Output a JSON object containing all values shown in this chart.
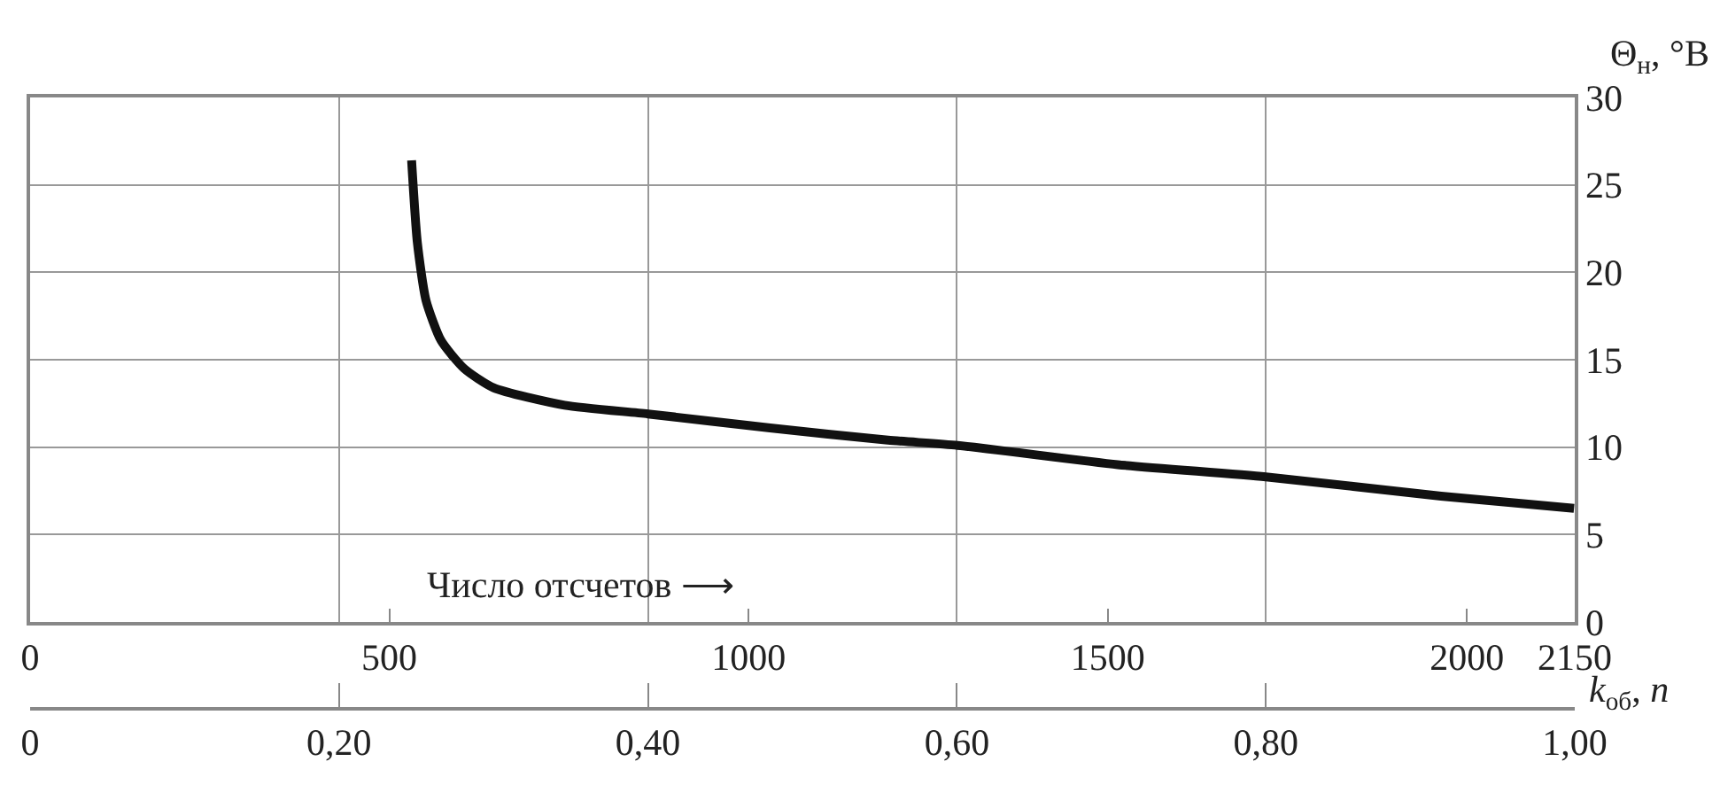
{
  "chart_data": {
    "type": "line",
    "ylabel": "Θ$_{н}$, °B",
    "x2label": "k$_{об}$, n",
    "x": [
      531,
      539,
      551,
      572,
      604,
      645,
      744,
      860,
      1030,
      1194,
      1291,
      1514,
      1720,
      1964,
      2149
    ],
    "series": [
      {
        "color": "#111111",
        "values": [
          26.4,
          21.7,
          18.4,
          16.1,
          14.5,
          13.4,
          12.4,
          11.9,
          11.1,
          10.4,
          10.1,
          9.0,
          8.3,
          7.2,
          6.5
        ]
      }
    ],
    "xlim": [
      0,
      2150
    ],
    "xticks": [
      0,
      500,
      1000,
      1500,
      2000,
      2150
    ],
    "x2lim": [
      0,
      1
    ],
    "x2ticks": [
      {
        "value": 0,
        "label": "0"
      },
      {
        "value": 0.2,
        "label": "0,20"
      },
      {
        "value": 0.4,
        "label": "0,40"
      },
      {
        "value": 0.6,
        "label": "0,60"
      },
      {
        "value": 0.8,
        "label": "0,80"
      },
      {
        "value": 1,
        "label": "1,00"
      }
    ],
    "ylim": [
      0,
      30
    ],
    "yticks": [
      0,
      5,
      10,
      15,
      20,
      25,
      30
    ],
    "annotations": [
      "Число отсчетов ⟶"
    ],
    "grid": true,
    "marker": "none",
    "line_style": "solid"
  }
}
